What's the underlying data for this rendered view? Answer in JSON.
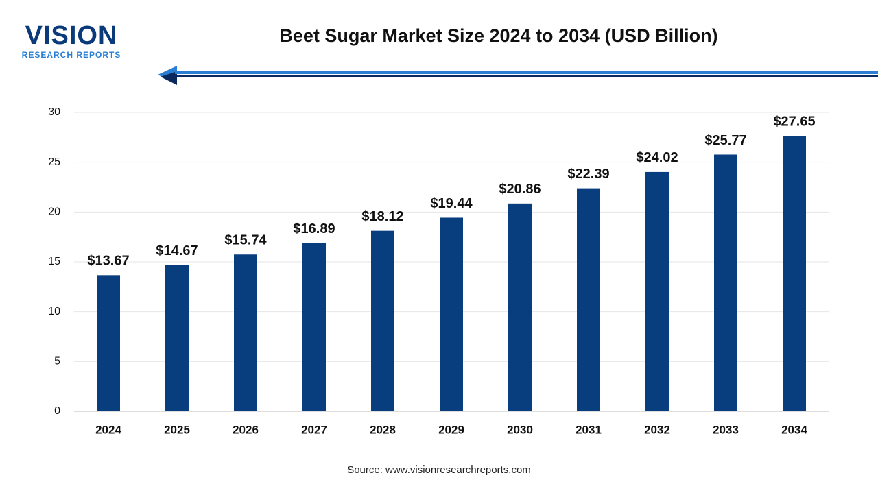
{
  "logo": {
    "name": "VISION",
    "tagline": "RESEARCH REPORTS"
  },
  "chart_data": {
    "type": "bar",
    "title": "Beet Sugar Market Size 2024 to 2034 (USD Billion)",
    "categories": [
      "2024",
      "2025",
      "2026",
      "2027",
      "2028",
      "2029",
      "2030",
      "2031",
      "2032",
      "2033",
      "2034"
    ],
    "values": [
      13.67,
      14.67,
      15.74,
      16.89,
      18.12,
      19.44,
      20.86,
      22.39,
      24.02,
      25.77,
      27.65
    ],
    "value_labels": [
      "$13.67",
      "$14.67",
      "$15.74",
      "$16.89",
      "$18.12",
      "$19.44",
      "$20.86",
      "$22.39",
      "$24.02",
      "$25.77",
      "$27.65"
    ],
    "color": "#083d7e",
    "ylim": [
      0,
      30
    ],
    "yticks": [
      0,
      5,
      10,
      15,
      20,
      25,
      30
    ],
    "grid": true,
    "source": "Source: www.visionresearchreports.com"
  }
}
